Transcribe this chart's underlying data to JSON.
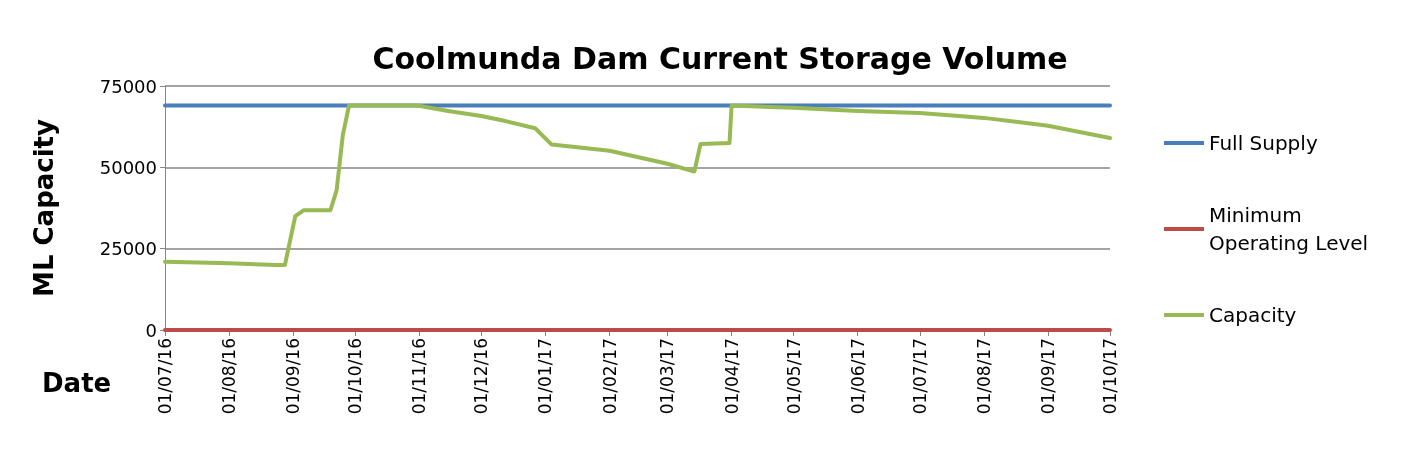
{
  "chart_data": {
    "type": "line",
    "title": "Coolmunda Dam Current Storage Volume",
    "xlabel": "Date",
    "ylabel": "ML Capacity",
    "series": [
      {
        "name": "Full Supply",
        "color": "#4a7ebb",
        "x": [
          "2016-07-01",
          "2017-10-01"
        ],
        "values": [
          69000,
          69000
        ]
      },
      {
        "name": "Minimum Operating Level",
        "color": "#be4b48",
        "x": [
          "2016-07-01",
          "2017-10-01"
        ],
        "values": [
          0,
          0
        ]
      },
      {
        "name": "Capacity",
        "color": "#98b954",
        "x": [
          "2016-07-01",
          "2016-08-01",
          "2016-08-24",
          "2016-08-28",
          "2016-09-02",
          "2016-09-06",
          "2016-09-19",
          "2016-09-22",
          "2016-09-25",
          "2016-09-28",
          "2016-10-31",
          "2016-11-15",
          "2016-12-01",
          "2016-12-12",
          "2016-12-27",
          "2017-01-04",
          "2017-02-01",
          "2017-03-01",
          "2017-03-14",
          "2017-03-17",
          "2017-03-31",
          "2017-04-01",
          "2017-05-01",
          "2017-06-01",
          "2017-07-01",
          "2017-07-20",
          "2017-08-01",
          "2017-09-01",
          "2017-10-01"
        ],
        "values": [
          21000,
          20500,
          20000,
          20000,
          35000,
          36800,
          36800,
          43000,
          60000,
          69000,
          69000,
          67300,
          65800,
          64300,
          62000,
          57000,
          55100,
          51100,
          48700,
          57200,
          57500,
          69000,
          68300,
          67300,
          66700,
          65800,
          65200,
          62800,
          59000
        ]
      }
    ],
    "xlim": [
      "2016-07-01",
      "2017-10-01"
    ],
    "xticks": [
      {
        "value": "2016-07-01",
        "label": "01/07/16"
      },
      {
        "value": "2016-08-01",
        "label": "01/08/16"
      },
      {
        "value": "2016-09-01",
        "label": "01/09/16"
      },
      {
        "value": "2016-10-01",
        "label": "01/10/16"
      },
      {
        "value": "2016-11-01",
        "label": "01/11/16"
      },
      {
        "value": "2016-12-01",
        "label": "01/12/16"
      },
      {
        "value": "2017-01-01",
        "label": "01/01/17"
      },
      {
        "value": "2017-02-01",
        "label": "01/02/17"
      },
      {
        "value": "2017-03-01",
        "label": "01/03/17"
      },
      {
        "value": "2017-04-01",
        "label": "01/04/17"
      },
      {
        "value": "2017-05-01",
        "label": "01/05/17"
      },
      {
        "value": "2017-06-01",
        "label": "01/06/17"
      },
      {
        "value": "2017-07-01",
        "label": "01/07/17"
      },
      {
        "value": "2017-08-01",
        "label": "01/08/17"
      },
      {
        "value": "2017-09-01",
        "label": "01/09/17"
      },
      {
        "value": "2017-10-01",
        "label": "01/10/17"
      }
    ],
    "ylim": [
      0,
      75000
    ],
    "yticks": [
      0,
      25000,
      50000,
      75000
    ],
    "grid": "y",
    "legend": "right",
    "marker": "none",
    "line_style": "solid"
  }
}
